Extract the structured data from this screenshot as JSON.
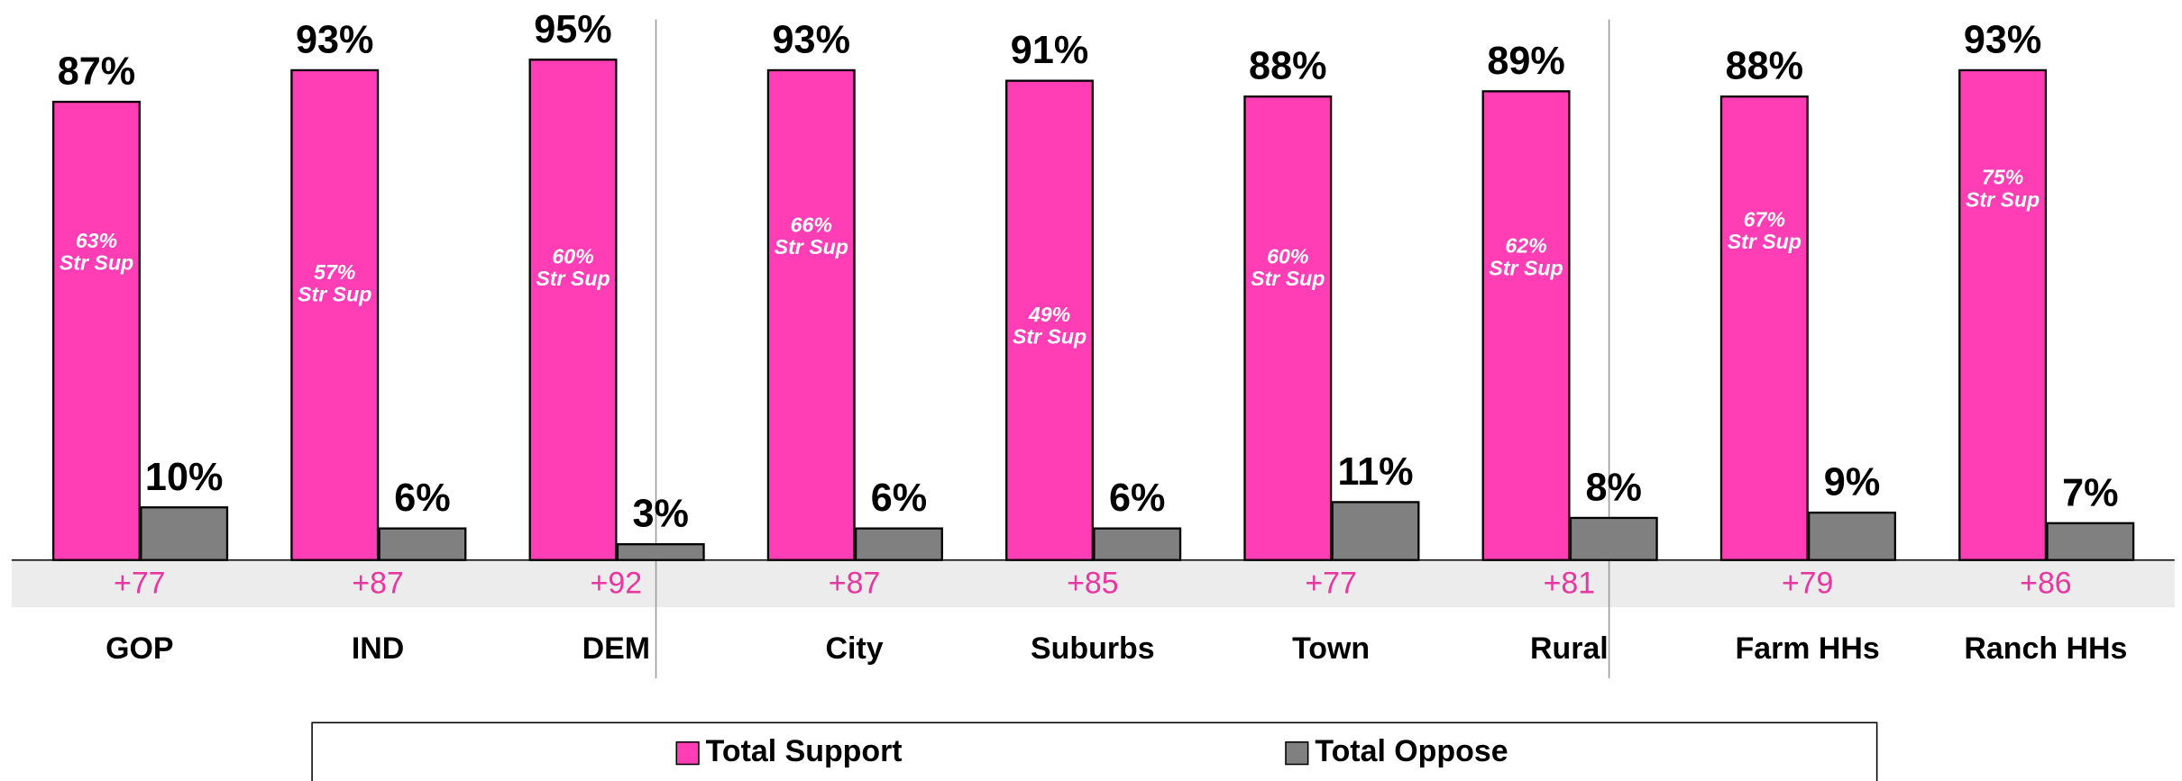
{
  "chart_data": {
    "type": "bar",
    "categories": [
      "GOP",
      "IND",
      "DEM",
      "City",
      "Suburbs",
      "Town",
      "Rural",
      "Farm HHs",
      "Ranch HHs"
    ],
    "group_sizes": [
      3,
      4,
      2
    ],
    "series": [
      {
        "name": "Total Support",
        "color": "#ff3eb5",
        "values": [
          87,
          93,
          95,
          93,
          91,
          88,
          89,
          88,
          93
        ],
        "value_labels": [
          "87%",
          "93%",
          "95%",
          "93%",
          "91%",
          "88%",
          "89%",
          "88%",
          "93%"
        ]
      },
      {
        "name": "Total Oppose",
        "color": "#808080",
        "values": [
          10,
          6,
          3,
          6,
          6,
          11,
          8,
          9,
          7
        ],
        "value_labels": [
          "10%",
          "6%",
          "3%",
          "6%",
          "6%",
          "11%",
          "8%",
          "9%",
          "7%"
        ]
      }
    ],
    "strong_support": {
      "name": "Str Sup",
      "values": [
        63,
        57,
        60,
        66,
        49,
        60,
        62,
        67,
        75
      ],
      "value_labels": [
        "63%",
        "57%",
        "60%",
        "66%",
        "49%",
        "60%",
        "62%",
        "67%",
        "75%"
      ]
    },
    "margins": {
      "color": "#e8389f",
      "values": [
        77,
        87,
        92,
        87,
        85,
        77,
        81,
        79,
        86
      ],
      "value_labels": [
        "+77",
        "+87",
        "+92",
        "+87",
        "+85",
        "+77",
        "+81",
        "+79",
        "+86"
      ]
    },
    "ylim": [
      0,
      100
    ],
    "legend": "bottom"
  }
}
